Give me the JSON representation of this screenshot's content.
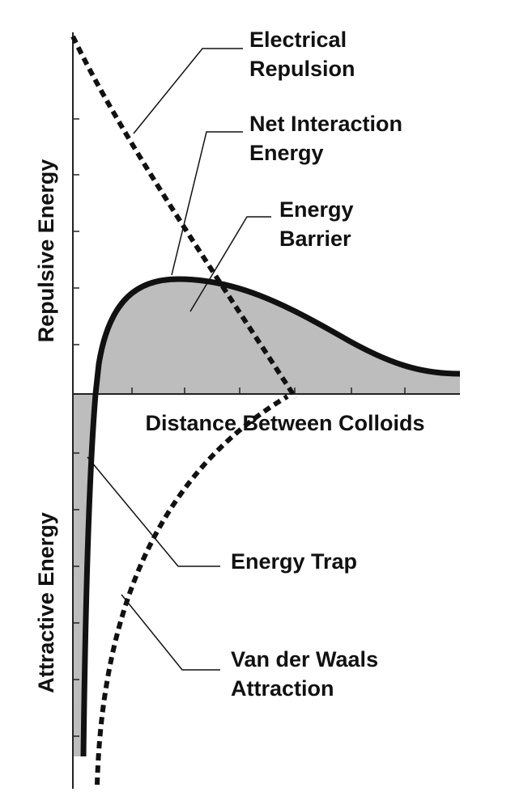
{
  "axes": {
    "x_label": "Distance Between Colloids",
    "y_upper_label": "Repulsive Energy",
    "y_lower_label": "Attractive Energy"
  },
  "labels": {
    "electrical_repulsion": [
      "Electrical",
      "Repulsion"
    ],
    "net_interaction": [
      "Net Interaction",
      "Energy"
    ],
    "energy_barrier": [
      "Energy",
      "Barrier"
    ],
    "energy_trap": [
      "Energy Trap"
    ],
    "van_der_waals": [
      "Van der Waals",
      "Attraction"
    ]
  }
}
